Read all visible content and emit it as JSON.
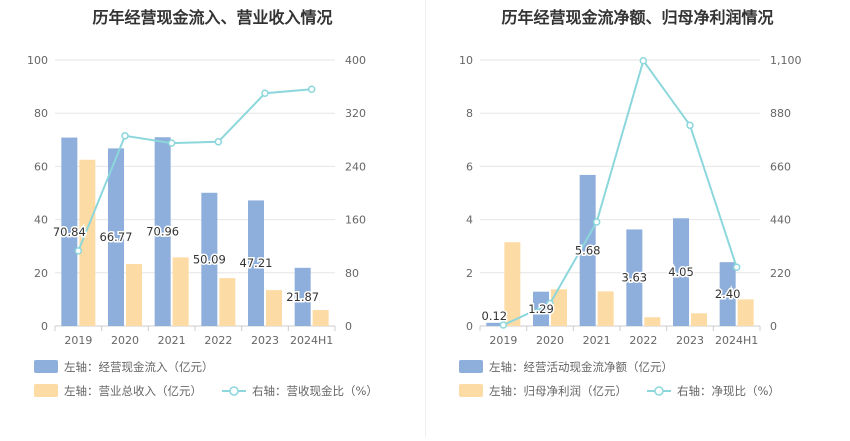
{
  "chart_data": [
    {
      "type": "bar",
      "title": "历年经营现金流入、营业收入情况",
      "categories": [
        "2019",
        "2020",
        "2021",
        "2022",
        "2023",
        "2024H1"
      ],
      "left_axis": {
        "min": 0,
        "max": 100,
        "ticks": [
          "0",
          "20",
          "40",
          "60",
          "80",
          "100"
        ]
      },
      "right_axis": {
        "min": 0,
        "max": 400,
        "ticks": [
          "0",
          "80",
          "160",
          "240",
          "320",
          "400"
        ]
      },
      "series": [
        {
          "name": "左轴：经营现金流入（亿元）",
          "kind": "bar",
          "axis": "left",
          "color": "#8eaedc",
          "values": [
            70.84,
            66.77,
            70.96,
            50.09,
            47.21,
            21.87
          ],
          "labels": [
            "70.84",
            "66.77",
            "70.96",
            "50.09",
            "47.21",
            "21.87"
          ]
        },
        {
          "name": "左轴：营业总收入（亿元）",
          "kind": "bar",
          "axis": "left",
          "color": "#fddba5",
          "values": [
            62.5,
            23.3,
            25.8,
            18.0,
            13.5,
            6.0
          ]
        },
        {
          "name": "右轴：营收现金比（%）",
          "kind": "line",
          "axis": "right",
          "color": "#8cd7dc",
          "values": [
            113,
            286,
            275,
            277,
            350,
            356
          ]
        }
      ]
    },
    {
      "type": "bar",
      "title": "历年经营现金流净额、归母净利润情况",
      "categories": [
        "2019",
        "2020",
        "2021",
        "2022",
        "2023",
        "2024H1"
      ],
      "left_axis": {
        "min": 0,
        "max": 10,
        "ticks": [
          "0",
          "2",
          "4",
          "6",
          "8",
          "10"
        ]
      },
      "right_axis": {
        "min": 0,
        "max": 1100,
        "ticks": [
          "0",
          "220",
          "440",
          "660",
          "880",
          "1,100"
        ]
      },
      "series": [
        {
          "name": "左轴：经营活动现金流净额（亿元）",
          "kind": "bar",
          "axis": "left",
          "color": "#8eaedc",
          "values": [
            0.12,
            1.29,
            5.68,
            3.63,
            4.05,
            2.4
          ],
          "labels": [
            "0.12",
            "1.29",
            "5.68",
            "3.63",
            "4.05",
            "2.40"
          ]
        },
        {
          "name": "左轴：归母净利润（亿元）",
          "kind": "bar",
          "axis": "left",
          "color": "#fddba5",
          "values": [
            3.15,
            1.38,
            1.3,
            0.33,
            0.48,
            1.0
          ]
        },
        {
          "name": "右轴：净现比（%）",
          "kind": "line",
          "axis": "right",
          "color": "#8cd7dc",
          "values": [
            4,
            93,
            430,
            1097,
            830,
            243
          ]
        }
      ]
    }
  ]
}
